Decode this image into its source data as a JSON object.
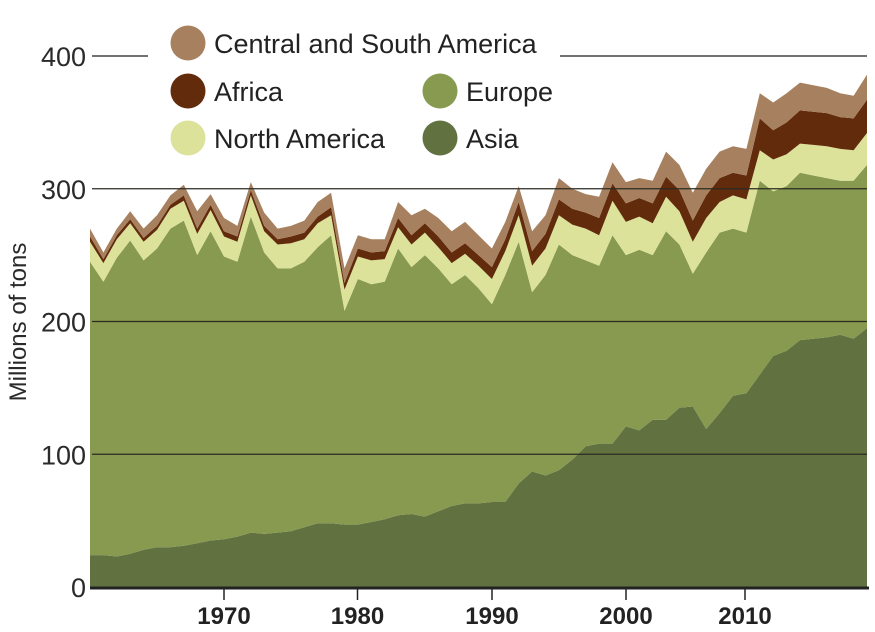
{
  "chart_data": {
    "type": "area",
    "stacked": true,
    "title": "",
    "xlabel": "",
    "ylabel": "Millions of tons",
    "xlim": [
      1960,
      2018
    ],
    "ylim": [
      0,
      400
    ],
    "yticks": [
      0,
      100,
      200,
      300,
      400
    ],
    "ytick_labels": [
      "0",
      "100",
      "200",
      "300",
      "400"
    ],
    "xticks": [
      1970,
      1980,
      1990,
      2000,
      2010
    ],
    "xtick_labels": [
      "1970",
      "1980",
      "1990",
      "2000",
      "2010"
    ],
    "grid": true,
    "legend_position": "top",
    "x": [
      1960,
      1961,
      1962,
      1963,
      1964,
      1965,
      1966,
      1967,
      1968,
      1969,
      1970,
      1971,
      1972,
      1973,
      1974,
      1975,
      1976,
      1977,
      1978,
      1979,
      1980,
      1981,
      1982,
      1983,
      1984,
      1985,
      1986,
      1987,
      1988,
      1989,
      1990,
      1991,
      1992,
      1993,
      1994,
      1995,
      1996,
      1997,
      1998,
      1999,
      2000,
      2001,
      2002,
      2003,
      2004,
      2005,
      2006,
      2007,
      2008,
      2009,
      2010,
      2011,
      2012,
      2013,
      2014,
      2015,
      2016,
      2017,
      2018
    ],
    "series": [
      {
        "name": "Asia",
        "color": "#617140",
        "values": [
          24,
          24,
          23,
          25,
          28,
          30,
          30,
          31,
          33,
          35,
          36,
          38,
          41,
          40,
          41,
          42,
          45,
          48,
          48,
          47,
          47,
          49,
          51,
          54,
          55,
          53,
          57,
          61,
          63,
          63,
          64,
          64,
          78,
          87,
          84,
          88,
          96,
          106,
          108,
          108,
          121,
          118,
          126,
          126,
          135,
          136,
          119,
          131,
          144,
          146,
          160,
          174,
          178,
          186,
          187,
          188,
          190,
          187,
          195
        ]
      },
      {
        "name": "Europe",
        "color": "#879a4f",
        "values": [
          221,
          206,
          225,
          236,
          218,
          225,
          240,
          245,
          217,
          233,
          213,
          207,
          238,
          212,
          199,
          198,
          200,
          208,
          217,
          161,
          185,
          179,
          179,
          201,
          186,
          197,
          183,
          167,
          172,
          162,
          149,
          171,
          182,
          135,
          151,
          170,
          154,
          140,
          134,
          157,
          129,
          136,
          124,
          142,
          123,
          100,
          133,
          136,
          126,
          121,
          146,
          124,
          124,
          126,
          123,
          120,
          116,
          119,
          123
        ]
      },
      {
        "name": "North America",
        "color": "#dde29b",
        "values": [
          15,
          14,
          14,
          13,
          14,
          14,
          15,
          15,
          16,
          16,
          15,
          15,
          16,
          16,
          18,
          19,
          17,
          18,
          15,
          16,
          17,
          18,
          17,
          16,
          17,
          17,
          16,
          16,
          16,
          17,
          19,
          18,
          20,
          20,
          20,
          22,
          23,
          24,
          23,
          26,
          25,
          25,
          24,
          26,
          25,
          24,
          26,
          23,
          25,
          25,
          23,
          24,
          24,
          22,
          23,
          24,
          24,
          23,
          24
        ]
      },
      {
        "name": "Africa",
        "color": "#622b0c",
        "values": [
          4,
          3,
          3,
          3,
          3,
          3,
          3,
          4,
          4,
          4,
          4,
          4,
          4,
          4,
          4,
          5,
          5,
          5,
          6,
          5,
          6,
          6,
          6,
          7,
          7,
          7,
          8,
          8,
          8,
          8,
          9,
          9,
          10,
          11,
          11,
          12,
          12,
          12,
          13,
          13,
          14,
          14,
          15,
          15,
          16,
          16,
          17,
          18,
          17,
          18,
          24,
          22,
          24,
          25,
          25,
          25,
          24,
          24,
          25
        ]
      },
      {
        "name": "Central and South America",
        "color": "#a7815f",
        "values": [
          6,
          5,
          5,
          6,
          7,
          8,
          7,
          8,
          13,
          8,
          10,
          8,
          6,
          10,
          8,
          8,
          9,
          11,
          11,
          11,
          10,
          10,
          9,
          12,
          15,
          11,
          14,
          16,
          16,
          15,
          14,
          13,
          12,
          15,
          14,
          16,
          15,
          14,
          16,
          16,
          16,
          15,
          17,
          19,
          19,
          21,
          20,
          20,
          20,
          20,
          19,
          21,
          22,
          21,
          20,
          19,
          18,
          17,
          19
        ]
      }
    ],
    "legend": [
      "Central and South America",
      "Africa",
      "North America",
      "Europe",
      "Asia"
    ]
  }
}
